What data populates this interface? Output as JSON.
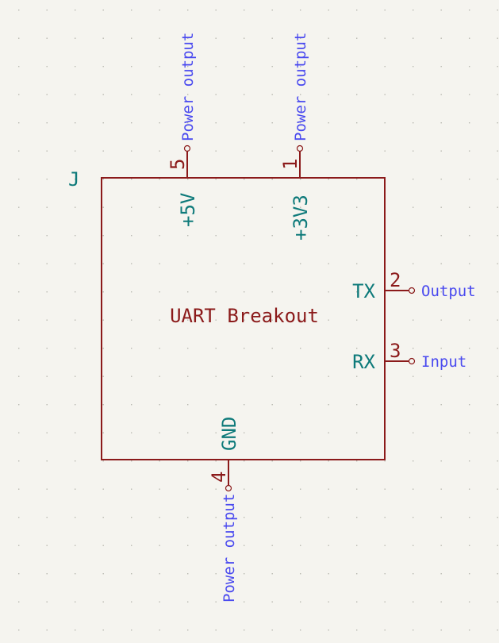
{
  "component": {
    "reference": "J",
    "value": "UART Breakout",
    "pins": [
      {
        "id": "pin-5v",
        "number": "5",
        "name": "+5V",
        "type": "Power output"
      },
      {
        "id": "pin-3v3",
        "number": "1",
        "name": "+3V3",
        "type": "Power output"
      },
      {
        "id": "pin-tx",
        "number": "2",
        "name": "TX",
        "type": "Output"
      },
      {
        "id": "pin-rx",
        "number": "3",
        "name": "RX",
        "type": "Input"
      },
      {
        "id": "pin-gnd",
        "number": "4",
        "name": "GND",
        "type": "Power output"
      }
    ]
  },
  "colors": {
    "background": "#f5f4ef",
    "body_outline": "#8b1a1a",
    "pin_name": "#0e7a7a",
    "electrical_type": "#4a4aef"
  }
}
